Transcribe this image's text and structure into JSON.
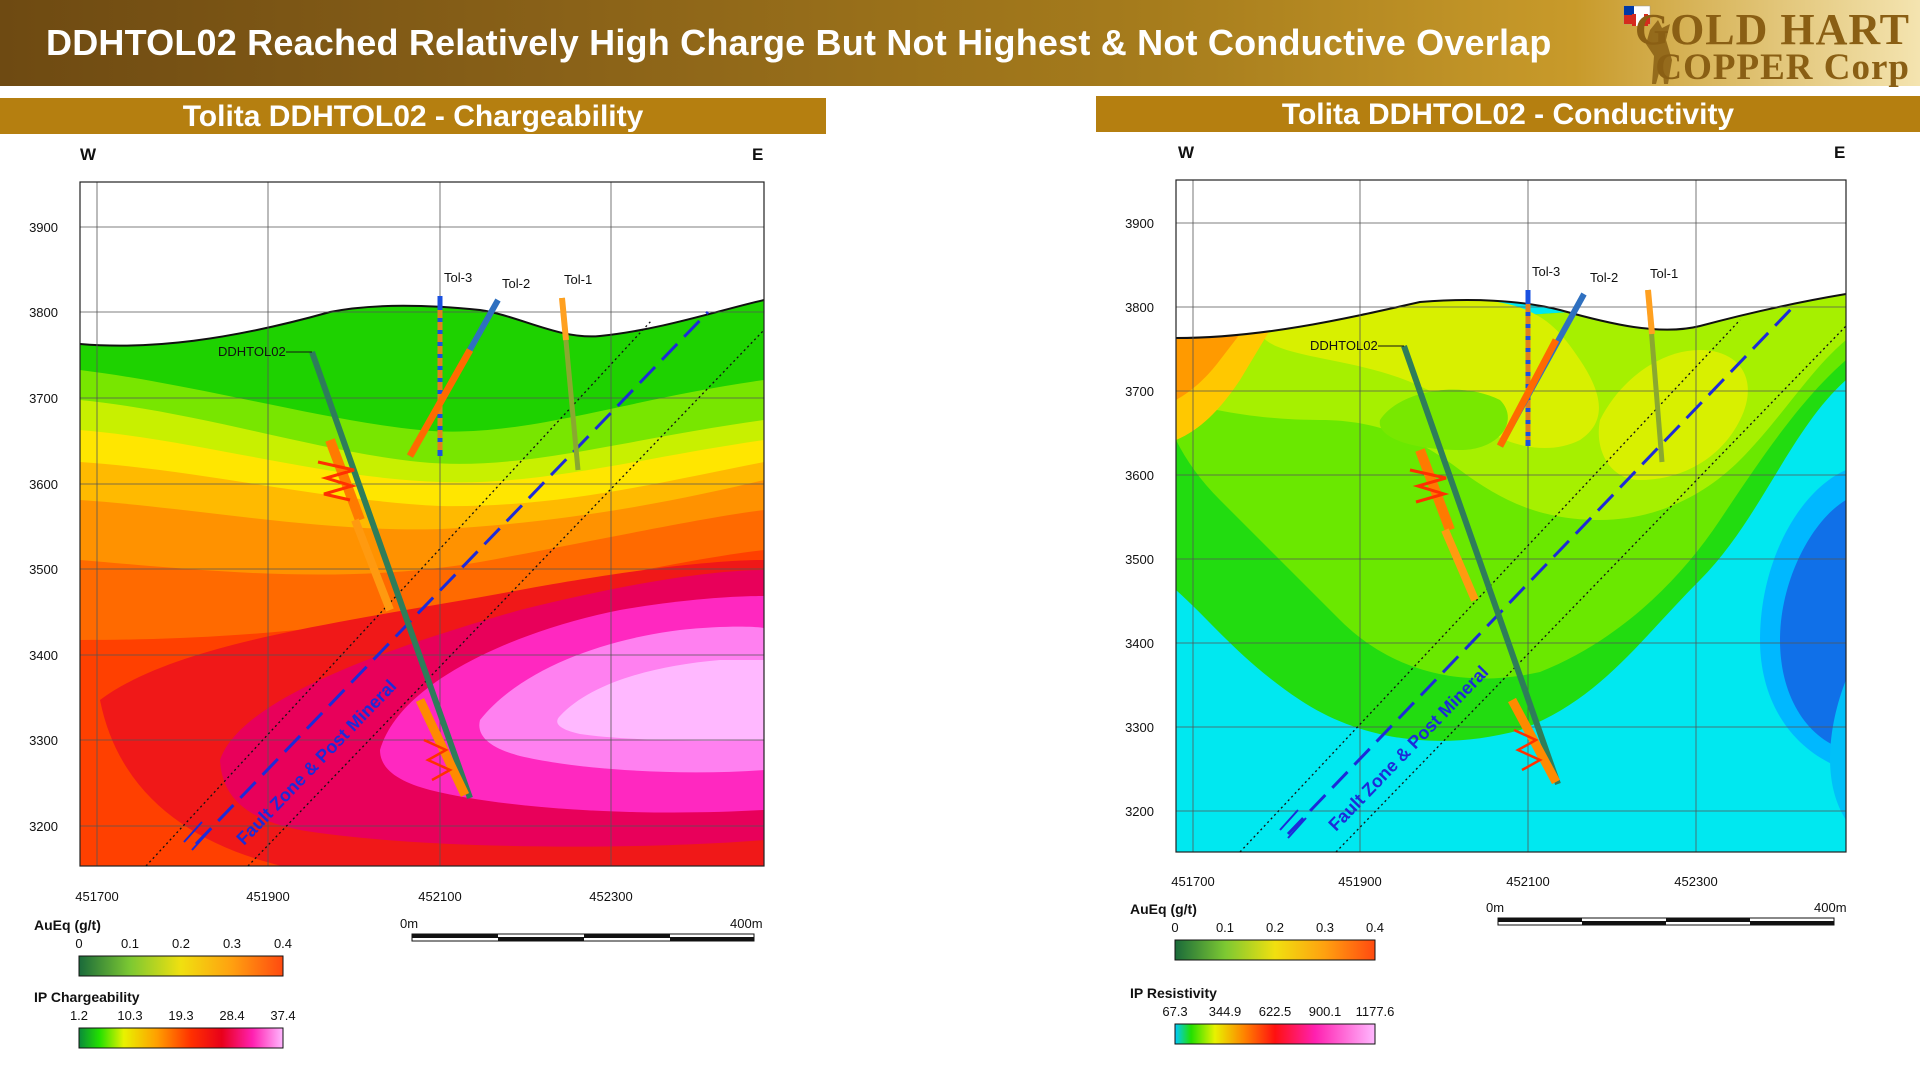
{
  "header": {
    "title": "DDHTOL02 Reached Relatively High Charge But Not Highest & Not Conductive Overlap",
    "logo_line1": "GOLD HART",
    "logo_line2": "COPPER Corp"
  },
  "colors": {
    "header_brown": "#8a6218",
    "panel_bar": "#b57f10",
    "fault_line": "#1d2bd8",
    "chargeability_scale": [
      "#0a8a3a",
      "#22e000",
      "#e8f200",
      "#ffa000",
      "#ff4000",
      "#e8001a",
      "#ff20b0",
      "#ffb8ff"
    ],
    "resistivity_scale": [
      "#1060ff",
      "#00b8ff",
      "#00e8ff",
      "#22e000",
      "#90f000",
      "#e8f200",
      "#ff8000"
    ]
  },
  "left_panel": {
    "title": "Tolita DDHTOL02  - Chargeability",
    "west": "W",
    "east": "E",
    "y_ticks": [
      "3900",
      "3800",
      "3700",
      "3600",
      "3500",
      "3400",
      "3300",
      "3200"
    ],
    "x_ticks": [
      "451700",
      "451900",
      "452100",
      "452300"
    ],
    "holes": [
      "Tol-3",
      "Tol-2",
      "Tol-1"
    ],
    "main_hole": "DDHTOL02",
    "fault_label": "Fault Zone & Post Mineral",
    "scale_start": "0m",
    "scale_end": "400m",
    "legend1_title": "AuEq (g/t)",
    "legend1_ticks": [
      "0",
      "0.1",
      "0.2",
      "0.3",
      "0.4"
    ],
    "legend2_title": "IP Chargeability",
    "legend2_ticks": [
      "1.2",
      "10.3",
      "19.3",
      "28.4",
      "37.4"
    ]
  },
  "right_panel": {
    "title": "Tolita  DDHTOL02  - Conductivity",
    "west": "W",
    "east": "E",
    "y_ticks": [
      "3900",
      "3800",
      "3700",
      "3600",
      "3500",
      "3400",
      "3300",
      "3200"
    ],
    "x_ticks": [
      "451700",
      "451900",
      "452100",
      "452300"
    ],
    "holes": [
      "Tol-3",
      "Tol-2",
      "Tol-1"
    ],
    "main_hole": "DDHTOL02",
    "fault_label": "Fault Zone & Post Mineral",
    "scale_start": "0m",
    "scale_end": "400m",
    "legend1_title": "AuEq (g/t)",
    "legend1_ticks": [
      "0",
      "0.1",
      "0.2",
      "0.3",
      "0.4"
    ],
    "legend2_title": "IP Resistivity",
    "legend2_ticks": [
      "67.3",
      "344.9",
      "622.5",
      "900.1",
      "1177.6"
    ]
  }
}
